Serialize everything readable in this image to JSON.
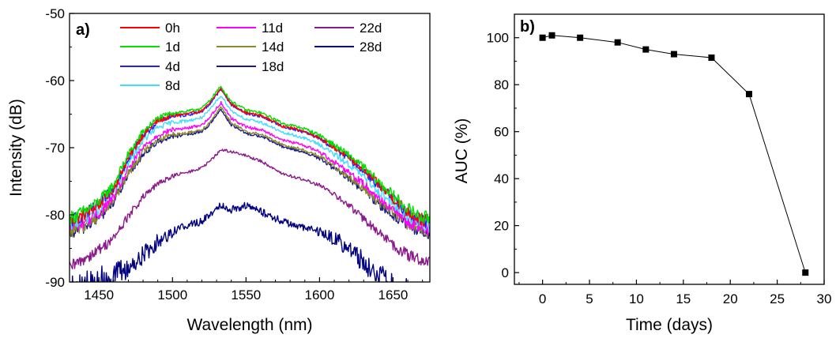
{
  "chart_data": [
    {
      "type": "line",
      "panel_label": "a)",
      "xlabel": "Wavelength (nm)",
      "ylabel": "Intensity (dB)",
      "xlim": [
        1430,
        1675
      ],
      "ylim": [
        -90,
        -50
      ],
      "xticks": [
        1450,
        1500,
        1550,
        1600,
        1650
      ],
      "yticks": [
        -90,
        -80,
        -70,
        -60,
        -50
      ],
      "grid": false,
      "legend_position": "top",
      "x": [
        1430,
        1440,
        1450,
        1460,
        1470,
        1480,
        1490,
        1500,
        1510,
        1520,
        1525,
        1530,
        1533,
        1536,
        1540,
        1550,
        1560,
        1570,
        1575,
        1580,
        1590,
        1600,
        1610,
        1620,
        1630,
        1640,
        1650,
        1660,
        1670,
        1675
      ],
      "series": [
        {
          "name": "0h",
          "color": "#ff0000",
          "noise": 0.6,
          "values": [
            -81,
            -80,
            -78.5,
            -76,
            -71.5,
            -68,
            -66,
            -65.2,
            -65,
            -64.5,
            -63.5,
            -62,
            -61.2,
            -62.2,
            -63.5,
            -64.8,
            -65.2,
            -66.2,
            -66.8,
            -67,
            -67.6,
            -68.5,
            -70,
            -71.5,
            -73.3,
            -75.5,
            -77.5,
            -79.5,
            -80.8,
            -81
          ]
        },
        {
          "name": "1d",
          "color": "#00e000",
          "noise": 0.6,
          "values": [
            -80.5,
            -79.5,
            -78,
            -75.5,
            -71,
            -67.6,
            -65.6,
            -64.8,
            -64.6,
            -64.1,
            -63.1,
            -61.6,
            -60.9,
            -61.9,
            -63.1,
            -64.4,
            -64.8,
            -65.8,
            -66.4,
            -66.6,
            -67.2,
            -68.1,
            -69.6,
            -71.1,
            -72.9,
            -75.1,
            -77.1,
            -79.1,
            -80.4,
            -80.5
          ]
        },
        {
          "name": "4d",
          "color": "#2020ff",
          "noise": 0.6,
          "values": [
            -81,
            -80,
            -78.5,
            -76,
            -71.5,
            -68.1,
            -66.1,
            -65.3,
            -65.1,
            -64.6,
            -63.6,
            -62.1,
            -61.3,
            -62.3,
            -63.6,
            -64.9,
            -65.3,
            -66.3,
            -66.9,
            -67.1,
            -67.7,
            -68.6,
            -70.1,
            -71.6,
            -73.4,
            -75.6,
            -77.6,
            -79.6,
            -80.9,
            -81
          ]
        },
        {
          "name": "8d",
          "color": "#44ddff",
          "noise": 0.6,
          "values": [
            -81.5,
            -80.5,
            -79,
            -76.5,
            -72.2,
            -68.9,
            -67,
            -66.2,
            -66,
            -65.5,
            -64.5,
            -63,
            -62.2,
            -63.2,
            -64.5,
            -65.8,
            -66.2,
            -67.2,
            -67.8,
            -68,
            -68.6,
            -69.5,
            -71,
            -72.5,
            -74.3,
            -76.4,
            -78.3,
            -80.2,
            -81.3,
            -81.5
          ]
        },
        {
          "name": "11d",
          "color": "#ff00ff",
          "noise": 0.6,
          "values": [
            -82,
            -81,
            -79.8,
            -77.3,
            -73.2,
            -70,
            -68.1,
            -67.3,
            -67.1,
            -66.6,
            -65.6,
            -64.1,
            -63.3,
            -64.3,
            -65.6,
            -66.9,
            -67.3,
            -68.3,
            -68.9,
            -69.1,
            -69.7,
            -70.6,
            -72.1,
            -73.6,
            -75.4,
            -77.4,
            -79.2,
            -81,
            -81.8,
            -82
          ]
        },
        {
          "name": "14d",
          "color": "#8b8b2b",
          "noise": 0.6,
          "values": [
            -82.5,
            -81.5,
            -80.2,
            -77.7,
            -73.8,
            -70.6,
            -68.8,
            -68,
            -67.8,
            -67.3,
            -66.3,
            -64.8,
            -64,
            -65,
            -66.3,
            -67.6,
            -68,
            -69,
            -69.6,
            -69.8,
            -70.4,
            -71.3,
            -72.8,
            -74.3,
            -76.1,
            -78,
            -79.7,
            -81.3,
            -82.2,
            -82.5
          ]
        },
        {
          "name": "18d",
          "color": "#1a1a8c",
          "noise": 0.6,
          "values": [
            -82.8,
            -81.8,
            -80.5,
            -78,
            -74.1,
            -70.9,
            -69.1,
            -68.3,
            -68.1,
            -67.6,
            -66.6,
            -65.1,
            -64.3,
            -65.3,
            -66.6,
            -67.9,
            -68.3,
            -69.3,
            -69.9,
            -70.1,
            -70.7,
            -71.6,
            -73.1,
            -74.6,
            -76.4,
            -78.3,
            -80,
            -81.6,
            -82.5,
            -82.8
          ]
        },
        {
          "name": "22d",
          "color": "#8b1a8b",
          "noise": 0.6,
          "values": [
            -88,
            -86.5,
            -85.2,
            -83.5,
            -80.2,
            -77.4,
            -75.4,
            -74.2,
            -73.7,
            -73,
            -72.1,
            -71,
            -70.3,
            -70.4,
            -70.6,
            -71.2,
            -72,
            -73.2,
            -73.9,
            -74.2,
            -74.8,
            -75.6,
            -77,
            -78.6,
            -80.6,
            -82.6,
            -84.5,
            -86,
            -86.8,
            -87
          ]
        },
        {
          "name": "28d",
          "color": "#000080",
          "noise": 1.6,
          "values": [
            -92,
            -91,
            -90,
            -89,
            -88,
            -86,
            -84,
            -82.5,
            -81.5,
            -81,
            -80,
            -79,
            -78.5,
            -78.8,
            -79.2,
            -78.6,
            -79.5,
            -80.5,
            -81,
            -81.3,
            -82,
            -82.5,
            -83.5,
            -85,
            -87,
            -89,
            -91,
            -92,
            -93,
            -93
          ]
        }
      ]
    },
    {
      "type": "line",
      "panel_label": "b)",
      "xlabel": "Time (days)",
      "ylabel": "AUC (%)",
      "xlim": [
        -3,
        30
      ],
      "ylim": [
        -5,
        110
      ],
      "xticks": [
        0,
        5,
        10,
        15,
        20,
        25,
        30
      ],
      "yticks": [
        0,
        20,
        40,
        60,
        80,
        100
      ],
      "grid": false,
      "marker": "square",
      "series": [
        {
          "color": "#000000",
          "x": [
            0,
            1,
            4,
            8,
            11,
            14,
            18,
            22,
            28
          ],
          "values": [
            100,
            101,
            100,
            98,
            95,
            93,
            91.5,
            76,
            0
          ]
        }
      ]
    }
  ]
}
